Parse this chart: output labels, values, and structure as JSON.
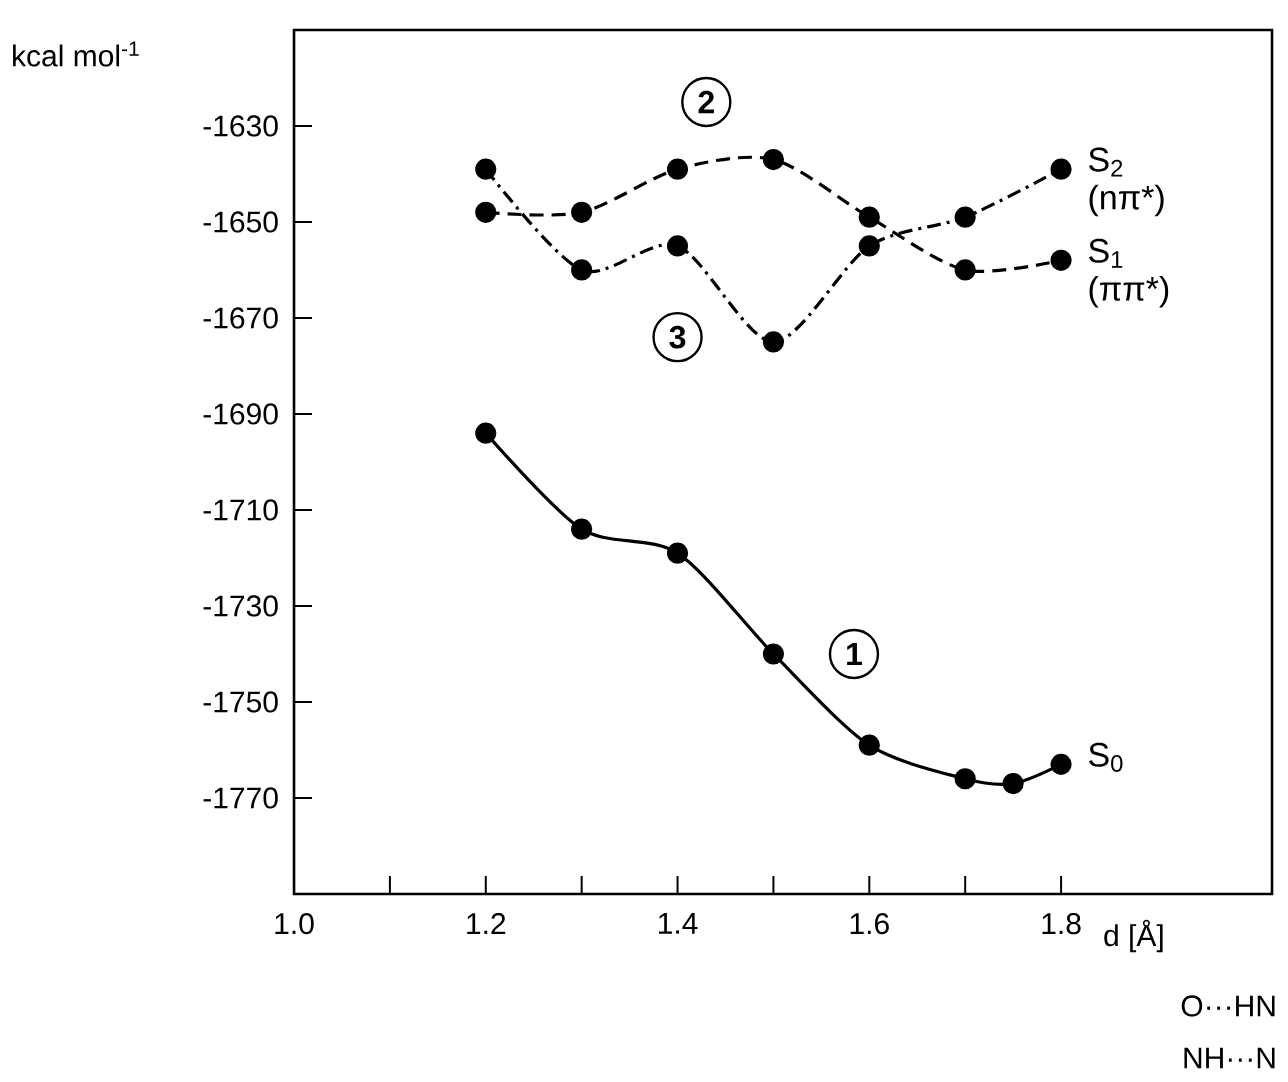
{
  "chart_data": {
    "type": "line",
    "ylabel": "kcal mol$^{-1}$",
    "xlabel": "d [Å]",
    "xlim": [
      1.0,
      2.02
    ],
    "ylim": [
      -1790,
      -1610
    ],
    "xticks": [
      {
        "value": 1.0,
        "label": "1.0"
      },
      {
        "value": 1.1,
        "label": null
      },
      1.2,
      {
        "value": 1.3,
        "label": null
      },
      1.4,
      {
        "value": 1.5,
        "label": null
      },
      1.6,
      {
        "value": 1.7,
        "label": null
      },
      1.8
    ],
    "yticks": [
      -1770,
      -1750,
      -1730,
      -1710,
      -1690,
      -1670,
      -1650,
      -1630
    ],
    "marker": "circle",
    "series": [
      {
        "name": "S$_{0}$",
        "color": "#000000",
        "line_style": "solid",
        "x": [
          1.2,
          1.3,
          1.4,
          1.5,
          1.6,
          1.7,
          1.75,
          1.8
        ],
        "values": [
          -1694,
          -1714,
          -1719,
          -1740,
          -1759,
          -1766,
          -1767,
          -1763
        ]
      },
      {
        "name": "S$_{1}$ (ππ*)",
        "color": "#000000",
        "line_style": "dashed",
        "x": [
          1.2,
          1.3,
          1.4,
          1.5,
          1.6,
          1.7,
          1.8
        ],
        "values": [
          -1648,
          -1648,
          -1639,
          -1637,
          -1649,
          -1660,
          -1658
        ]
      },
      {
        "name": "S$_{2}$ (nπ*)",
        "color": "#000000",
        "line_style": "dashdot",
        "x": [
          1.2,
          1.3,
          1.4,
          1.5,
          1.6,
          1.7,
          1.8
        ],
        "values": [
          -1639,
          -1660,
          -1655,
          -1675,
          -1655,
          -1649,
          -1639
        ]
      }
    ],
    "annotations": [
      {
        "text": "1",
        "x": 1.584,
        "y": -1740
      },
      {
        "text": "2",
        "x": 1.43,
        "y": -1625
      },
      {
        "text": "3",
        "x": 1.4,
        "y": -1674
      },
      "O···HN",
      "NH···N"
    ]
  }
}
